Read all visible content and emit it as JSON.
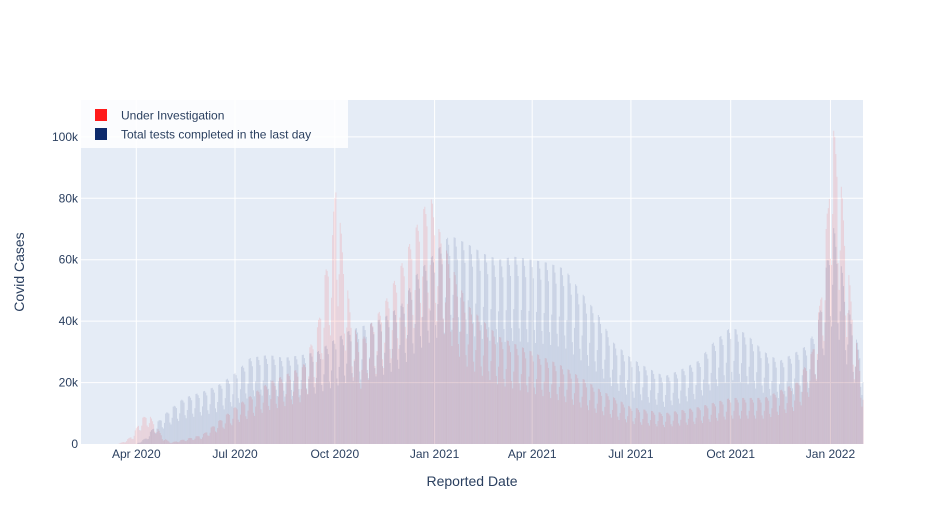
{
  "chart_data": {
    "type": "bar",
    "title": "",
    "xlabel": "Reported Date",
    "ylabel": "Covid Cases",
    "ylim": [
      0,
      112000
    ],
    "xlim": [
      "2020-02-10",
      "2022-01-31"
    ],
    "grid": true,
    "legend_position": "top-left",
    "x_ticks": [
      {
        "date": "2020-04-01",
        "label": "Apr 2020"
      },
      {
        "date": "2020-07-01",
        "label": "Jul 2020"
      },
      {
        "date": "2020-10-01",
        "label": "Oct 2020"
      },
      {
        "date": "2021-01-01",
        "label": "Jan 2021"
      },
      {
        "date": "2021-04-01",
        "label": "Apr 2021"
      },
      {
        "date": "2021-07-01",
        "label": "Jul 2021"
      },
      {
        "date": "2021-10-01",
        "label": "Oct 2021"
      },
      {
        "date": "2022-01-01",
        "label": "Jan 2022"
      }
    ],
    "y_ticks": [
      {
        "value": 0,
        "label": "0"
      },
      {
        "value": 20000,
        "label": "20k"
      },
      {
        "value": 40000,
        "label": "40k"
      },
      {
        "value": 60000,
        "label": "60k"
      },
      {
        "value": 80000,
        "label": "80k"
      },
      {
        "value": 100000,
        "label": "100k"
      }
    ],
    "series": [
      {
        "name": "Under Investigation",
        "color": "#ff1a1a",
        "opacity": 0.12,
        "dates": [
          "2020-03-15",
          "2020-03-22",
          "2020-03-29",
          "2020-04-05",
          "2020-04-12",
          "2020-04-19",
          "2020-04-26",
          "2020-05-03",
          "2020-06-01",
          "2020-07-01",
          "2020-08-01",
          "2020-09-01",
          "2020-09-15",
          "2020-09-22",
          "2020-09-29",
          "2020-10-02",
          "2020-10-06",
          "2020-10-10",
          "2020-10-16",
          "2020-10-24",
          "2020-11-01",
          "2020-11-15",
          "2020-12-01",
          "2020-12-10",
          "2020-12-20",
          "2020-12-28",
          "2021-01-05",
          "2021-01-20",
          "2021-02-01",
          "2021-03-01",
          "2021-04-01",
          "2021-05-01",
          "2021-06-01",
          "2021-07-01",
          "2021-08-01",
          "2021-09-01",
          "2021-10-01",
          "2021-11-01",
          "2021-12-01",
          "2021-12-15",
          "2021-12-22",
          "2021-12-27",
          "2021-12-30",
          "2022-01-02",
          "2022-01-05",
          "2022-01-08",
          "2022-01-12",
          "2022-01-18",
          "2022-01-24",
          "2022-01-31"
        ],
        "values": [
          0,
          1000,
          3000,
          8000,
          10000,
          6000,
          2000,
          500,
          3000,
          12000,
          20000,
          25000,
          38000,
          55000,
          68000,
          91000,
          72000,
          58000,
          42000,
          32000,
          38000,
          45000,
          58000,
          66000,
          75000,
          81000,
          70000,
          55000,
          45000,
          35000,
          30000,
          25000,
          18000,
          12000,
          10000,
          12000,
          15000,
          15000,
          20000,
          30000,
          45000,
          65000,
          80000,
          106000,
          100000,
          95000,
          80000,
          55000,
          35000,
          20000
        ]
      },
      {
        "name": "Total tests completed in the last day",
        "color": "#0d2a6b",
        "opacity": 0.13,
        "dates": [
          "2020-03-01",
          "2020-03-15",
          "2020-04-01",
          "2020-04-10",
          "2020-04-20",
          "2020-05-01",
          "2020-05-15",
          "2020-06-01",
          "2020-06-15",
          "2020-07-01",
          "2020-07-15",
          "2020-08-01",
          "2020-08-15",
          "2020-09-01",
          "2020-09-15",
          "2020-10-01",
          "2020-10-15",
          "2020-11-01",
          "2020-11-15",
          "2020-12-01",
          "2020-12-15",
          "2021-01-01",
          "2021-01-15",
          "2021-02-01",
          "2021-02-15",
          "2021-03-01",
          "2021-03-15",
          "2021-04-01",
          "2021-04-15",
          "2021-05-01",
          "2021-05-15",
          "2021-06-01",
          "2021-06-15",
          "2021-07-01",
          "2021-07-15",
          "2021-08-01",
          "2021-08-15",
          "2021-09-01",
          "2021-09-15",
          "2021-10-01",
          "2021-10-15",
          "2021-11-01",
          "2021-11-15",
          "2021-12-01",
          "2021-12-10",
          "2021-12-20",
          "2021-12-27",
          "2022-01-03",
          "2022-01-10",
          "2022-01-17",
          "2022-01-24",
          "2022-01-31"
        ],
        "values": [
          0,
          0,
          0,
          2000,
          7000,
          11000,
          15000,
          17000,
          19000,
          23000,
          28000,
          29000,
          28000,
          29000,
          30000,
          34000,
          37000,
          39000,
          41000,
          45000,
          55000,
          62000,
          68000,
          65000,
          62000,
          60000,
          61000,
          60000,
          59000,
          57000,
          50000,
          42000,
          33000,
          28000,
          25000,
          22000,
          24000,
          27000,
          33000,
          38000,
          36000,
          30000,
          27000,
          30000,
          32000,
          38000,
          55000,
          72000,
          60000,
          45000,
          35000,
          28000
        ]
      }
    ]
  }
}
